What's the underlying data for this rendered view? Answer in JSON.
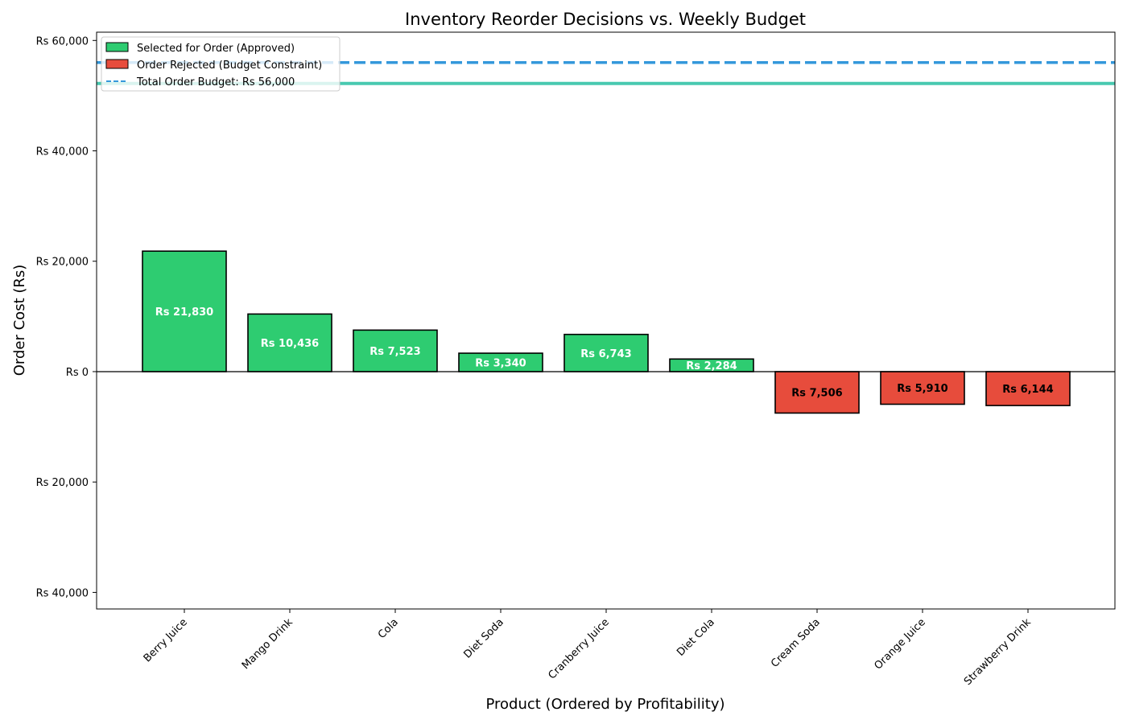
{
  "chart_data": {
    "type": "bar",
    "title": "Inventory Reorder Decisions vs. Weekly Budget",
    "xlabel": "Product (Ordered by Profitability)",
    "ylabel": "Order Cost (Rs)",
    "ylim": [
      -43000,
      61500
    ],
    "yticks": [
      -40000,
      -20000,
      0,
      20000,
      40000,
      60000
    ],
    "ytick_labels": [
      "Rs 40,000",
      "Rs 20,000",
      "Rs 0",
      "Rs 20,000",
      "Rs 40,000",
      "Rs 60,000"
    ],
    "categories": [
      "Berry Juice",
      "Mango Drink",
      "Cola",
      "Diet Soda",
      "Cranberry Juice",
      "Diet Cola",
      "Cream Soda",
      "Orange Juice",
      "Strawberry Drink"
    ],
    "values": [
      21830,
      10436,
      7523,
      3340,
      6743,
      2284,
      -7506,
      -5910,
      -6144
    ],
    "bar_labels": [
      "Rs 21,830",
      "Rs 10,436",
      "Rs 7,523",
      "Rs 3,340",
      "Rs 6,743",
      "Rs 2,284",
      "Rs 7,506",
      "Rs 5,910",
      "Rs 6,144"
    ],
    "status": [
      "approved",
      "approved",
      "approved",
      "approved",
      "approved",
      "approved",
      "rejected",
      "rejected",
      "rejected"
    ],
    "budget_line": {
      "value": 56000,
      "label": "Total Order Budget: Rs 56,000",
      "color": "#3498db",
      "style": "dashed"
    },
    "reference_line": {
      "value": 52200,
      "color": "#48c9b0"
    },
    "legend": {
      "placement": "top-left",
      "items": [
        {
          "label": "Selected for Order (Approved)",
          "color": "#2ecc71",
          "kind": "patch"
        },
        {
          "label": "Order Rejected (Budget Constraint)",
          "color": "#e74c3c",
          "kind": "patch"
        },
        {
          "label": "Total Order Budget: Rs 56,000",
          "color": "#3498db",
          "kind": "dashed-line"
        }
      ]
    },
    "colors": {
      "approved": "#2ecc71",
      "rejected": "#e74c3c",
      "approved_label": "#ffffff",
      "rejected_label": "#000000"
    },
    "grid": false
  }
}
